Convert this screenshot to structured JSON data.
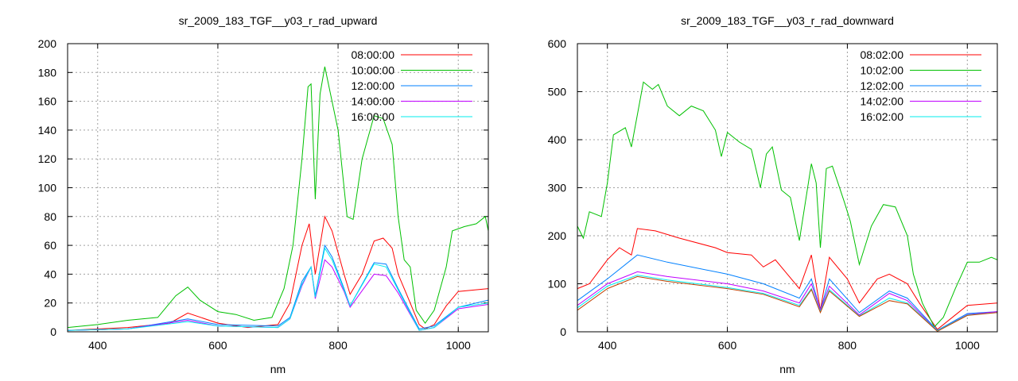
{
  "chart_data": [
    {
      "type": "line",
      "title": "sr_2009_183_TGF__y03_r_rad_upward",
      "xlabel": "nm",
      "ylabel": "",
      "xlim": [
        350,
        1050
      ],
      "ylim": [
        0,
        200
      ],
      "xticks": [
        400,
        600,
        800,
        1000
      ],
      "yticks": [
        0,
        20,
        40,
        60,
        80,
        100,
        120,
        140,
        160,
        180,
        200
      ],
      "grid": true,
      "legend": "top-right",
      "series": [
        {
          "name": "08:00:00",
          "color": "#ff0000",
          "x": [
            350,
            450,
            520,
            550,
            600,
            650,
            700,
            720,
            740,
            752,
            762,
            778,
            790,
            810,
            820,
            840,
            860,
            875,
            890,
            900,
            915,
            935,
            945,
            960,
            980,
            1000,
            1050
          ],
          "y": [
            1,
            3,
            6,
            13,
            6,
            3,
            5,
            20,
            60,
            75,
            40,
            80,
            70,
            40,
            26,
            40,
            63,
            65,
            58,
            40,
            25,
            5,
            2,
            5,
            18,
            28,
            30
          ]
        },
        {
          "name": "10:00:00",
          "color": "#00c000",
          "x": [
            350,
            400,
            450,
            500,
            530,
            550,
            570,
            600,
            630,
            660,
            690,
            710,
            725,
            740,
            750,
            755,
            762,
            770,
            778,
            790,
            800,
            815,
            825,
            840,
            860,
            875,
            890,
            900,
            910,
            920,
            930,
            945,
            960,
            980,
            990,
            1010,
            1030,
            1045,
            1050
          ],
          "y": [
            3,
            5,
            8,
            10,
            25,
            31,
            22,
            14,
            12,
            8,
            10,
            30,
            60,
            120,
            170,
            172,
            92,
            165,
            184,
            160,
            140,
            80,
            78,
            120,
            150,
            148,
            130,
            80,
            50,
            45,
            15,
            6,
            15,
            45,
            70,
            73,
            75,
            80,
            70
          ]
        },
        {
          "name": "12:00:00",
          "color": "#0080ff",
          "x": [
            350,
            450,
            550,
            600,
            700,
            720,
            740,
            755,
            762,
            778,
            790,
            810,
            820,
            860,
            880,
            900,
            935,
            960,
            1000,
            1050
          ],
          "y": [
            1,
            2,
            9,
            5,
            4,
            10,
            35,
            45,
            25,
            60,
            52,
            30,
            18,
            48,
            47,
            30,
            2,
            4,
            17,
            22
          ]
        },
        {
          "name": "14:00:00",
          "color": "#c000ff",
          "x": [
            350,
            450,
            550,
            600,
            700,
            720,
            740,
            755,
            762,
            778,
            790,
            810,
            820,
            860,
            880,
            900,
            935,
            960,
            1000,
            1050
          ],
          "y": [
            1,
            2,
            8,
            4,
            3,
            9,
            32,
            45,
            23,
            50,
            45,
            28,
            17,
            40,
            39,
            27,
            1,
            3,
            16,
            19
          ]
        },
        {
          "name": "16:00:00",
          "color": "#00eeee",
          "x": [
            350,
            450,
            550,
            600,
            700,
            720,
            740,
            755,
            762,
            778,
            790,
            810,
            820,
            860,
            880,
            900,
            935,
            960,
            1000,
            1050
          ],
          "y": [
            1,
            2,
            7,
            4,
            3,
            9,
            33,
            45,
            24,
            58,
            50,
            29,
            18,
            47,
            45,
            29,
            1,
            3,
            17,
            20
          ]
        }
      ]
    },
    {
      "type": "line",
      "title": "sr_2009_183_TGF__y03_r_rad_downward",
      "xlabel": "nm",
      "ylabel": "",
      "xlim": [
        350,
        1050
      ],
      "ylim": [
        0,
        600
      ],
      "xticks": [
        400,
        600,
        800,
        1000
      ],
      "yticks": [
        0,
        100,
        200,
        300,
        400,
        500,
        600
      ],
      "grid": true,
      "legend": "top-right",
      "series": [
        {
          "name": "08:02:00",
          "color": "#ff0000",
          "x": [
            350,
            370,
            400,
            420,
            440,
            450,
            480,
            520,
            580,
            600,
            640,
            660,
            680,
            700,
            720,
            740,
            755,
            770,
            800,
            820,
            850,
            870,
            900,
            920,
            950,
            980,
            1000,
            1050
          ],
          "y": [
            90,
            100,
            150,
            175,
            160,
            215,
            210,
            195,
            175,
            165,
            160,
            135,
            150,
            120,
            90,
            160,
            45,
            155,
            110,
            60,
            110,
            120,
            100,
            60,
            5,
            35,
            55,
            60
          ]
        },
        {
          "name": "10:02:00",
          "color": "#00c000",
          "x": [
            350,
            360,
            370,
            390,
            400,
            410,
            430,
            440,
            460,
            475,
            485,
            500,
            520,
            540,
            560,
            580,
            590,
            600,
            620,
            640,
            655,
            665,
            675,
            690,
            705,
            720,
            740,
            748,
            755,
            765,
            775,
            795,
            805,
            820,
            840,
            860,
            880,
            900,
            910,
            925,
            945,
            960,
            980,
            1000,
            1020,
            1040,
            1050
          ],
          "y": [
            220,
            195,
            250,
            240,
            310,
            410,
            425,
            385,
            520,
            505,
            515,
            470,
            450,
            470,
            460,
            420,
            365,
            415,
            395,
            380,
            300,
            370,
            385,
            295,
            280,
            190,
            350,
            310,
            175,
            340,
            345,
            270,
            230,
            140,
            220,
            265,
            260,
            200,
            120,
            60,
            10,
            30,
            90,
            145,
            145,
            155,
            150
          ]
        },
        {
          "name": "12:02:00",
          "color": "#0080ff",
          "x": [
            350,
            400,
            450,
            500,
            600,
            660,
            720,
            740,
            755,
            770,
            820,
            870,
            900,
            950,
            1000,
            1050
          ],
          "y": [
            65,
            110,
            160,
            145,
            120,
            100,
            70,
            110,
            45,
            110,
            40,
            85,
            70,
            3,
            38,
            42
          ]
        },
        {
          "name": "14:02:00",
          "color": "#c000ff",
          "x": [
            350,
            400,
            450,
            500,
            600,
            660,
            720,
            740,
            755,
            770,
            820,
            870,
            900,
            950,
            1000,
            1050
          ],
          "y": [
            55,
            100,
            125,
            115,
            100,
            85,
            60,
            100,
            45,
            95,
            35,
            80,
            65,
            2,
            36,
            42
          ]
        },
        {
          "name": "16:02:00",
          "color": "#00eeee",
          "x": [
            350,
            400,
            450,
            500,
            600,
            660,
            720,
            740,
            755,
            770,
            820,
            870,
            900,
            950,
            1000,
            1050
          ],
          "y": [
            50,
            95,
            118,
            108,
            92,
            80,
            55,
            90,
            42,
            88,
            33,
            70,
            60,
            2,
            35,
            40
          ]
        },
        {
          "name": "",
          "color": "#c04000",
          "x": [
            350,
            400,
            450,
            500,
            600,
            660,
            720,
            740,
            755,
            770,
            820,
            870,
            900,
            950,
            1000,
            1050
          ],
          "y": [
            45,
            90,
            115,
            105,
            90,
            78,
            52,
            88,
            40,
            85,
            32,
            65,
            58,
            1,
            34,
            40
          ]
        }
      ]
    }
  ]
}
